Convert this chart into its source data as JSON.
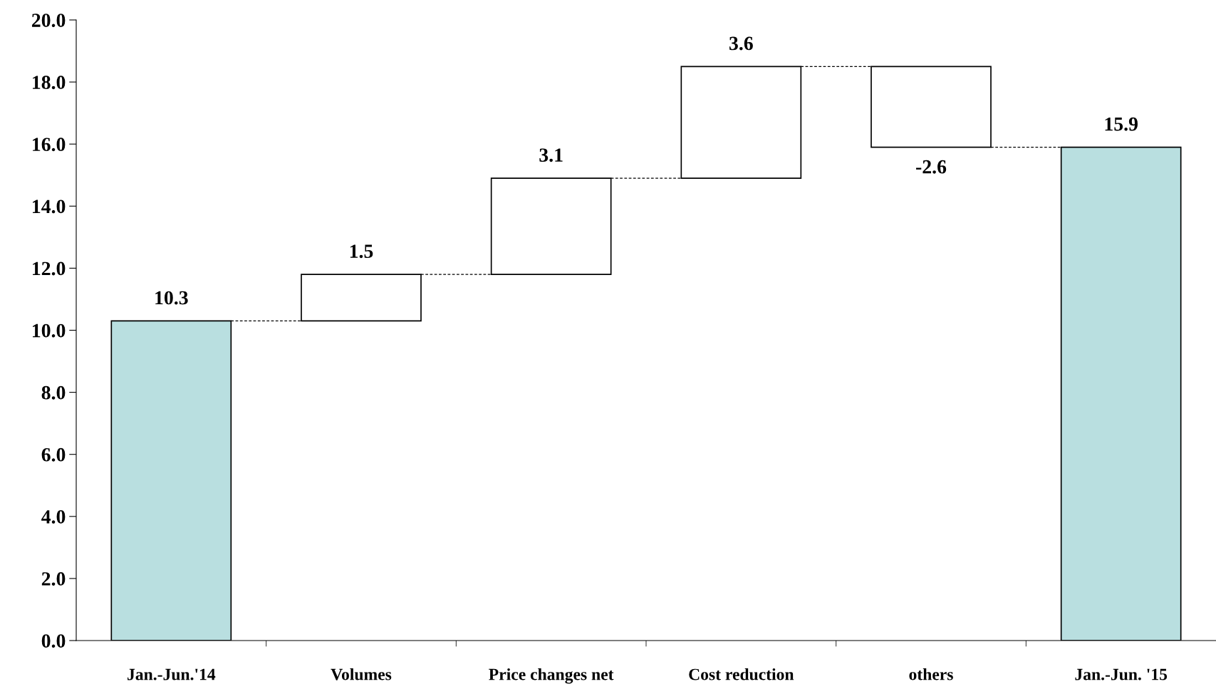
{
  "chart_data": {
    "type": "bar",
    "categories": [
      "Jan.-Jun.'14",
      "Volumes",
      "Price changes net",
      "Cost reduction",
      "others",
      "Jan.-Jun. '15"
    ],
    "values": [
      10.3,
      1.5,
      3.1,
      3.6,
      -2.6,
      15.9
    ],
    "base": [
      0,
      10.3,
      11.8,
      14.9,
      18.5,
      0
    ],
    "colors": [
      "#b9dfe0",
      "#ffffff",
      "#ffffff",
      "#ffffff",
      "#ffffff",
      "#b9dfe0"
    ],
    "ylim": [
      0,
      20
    ],
    "yticks": [
      {
        "value": 0,
        "label": "0.0"
      },
      {
        "value": 2,
        "label": "2.0"
      },
      {
        "value": 4,
        "label": "4.0"
      },
      {
        "value": 6,
        "label": "6.0"
      },
      {
        "value": 8,
        "label": "8.0"
      },
      {
        "value": 10,
        "label": "10.0"
      },
      {
        "value": 12,
        "label": "12.0"
      },
      {
        "value": 14,
        "label": "14.0"
      },
      {
        "value": 16,
        "label": "16.0"
      },
      {
        "value": 18,
        "label": "18.0"
      },
      {
        "value": 20,
        "label": "20.0"
      }
    ],
    "data_labels": true,
    "grid": false
  }
}
